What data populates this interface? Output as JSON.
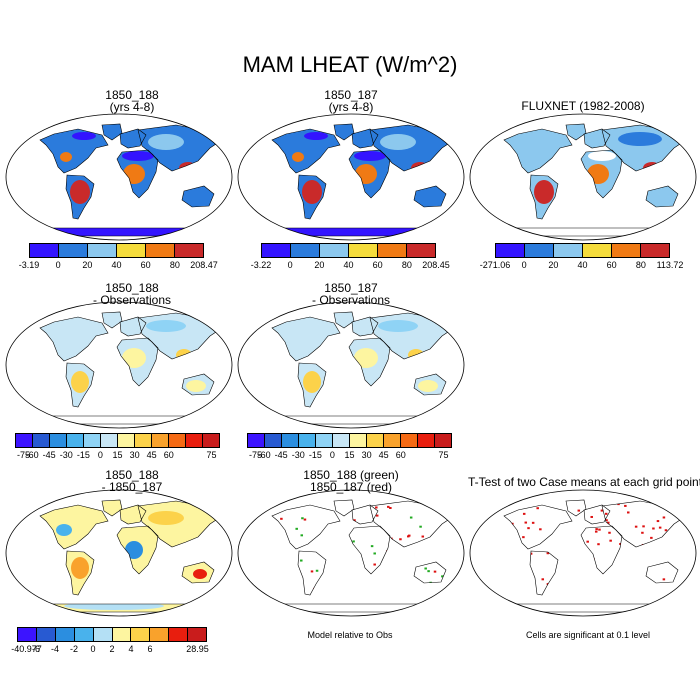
{
  "main_title": "MAM LHEAT (W/m^2)",
  "panels": {
    "p1": {
      "title_1": "1850_188",
      "title_2": "(yrs 4-8)"
    },
    "p2": {
      "title_1": "1850_187",
      "title_2": "(yrs 4-8)"
    },
    "p3": {
      "title_1": "FLUXNET (1982-2008)"
    },
    "p4": {
      "title_1": "1850_188",
      "title_2": "- Observations"
    },
    "p5": {
      "title_1": "1850_187",
      "title_2": "- Observations"
    },
    "p6": {
      "title_1": "1850_188",
      "title_2": "- 1850_187"
    },
    "p7": {
      "title_1": "1850_188 (green)",
      "title_2": "1850_187 (red)"
    },
    "p8": {
      "title_1": "T-Test of two Case means at each grid point"
    }
  },
  "colorbars": {
    "cb1": {
      "labels": [
        "-3.19",
        "0",
        "20",
        "40",
        "60",
        "80",
        "208.47"
      ]
    },
    "cb2": {
      "labels": [
        "-3.22",
        "0",
        "20",
        "40",
        "60",
        "80",
        "208.45"
      ]
    },
    "cb3": {
      "labels": [
        "-271.06",
        "0",
        "20",
        "40",
        "60",
        "80",
        "113.72"
      ]
    },
    "cb4": {
      "labels": [
        "-75",
        "-60",
        "-45",
        "-30",
        "-15",
        "0",
        "15",
        "30",
        "45",
        "60",
        "75"
      ]
    },
    "cb5": {
      "labels": [
        "-75",
        "-60",
        "-45",
        "-30",
        "-15",
        "0",
        "15",
        "30",
        "45",
        "60",
        "75"
      ]
    },
    "cb6": {
      "labels": [
        "-40.977",
        "-6",
        "-4",
        "-2",
        "0",
        "2",
        "4",
        "6",
        "28.95"
      ]
    }
  },
  "palettes": {
    "abs": [
      "#3314ff",
      "#2b7bdc",
      "#8cc8ee",
      "#f5dc3c",
      "#f07a14",
      "#c92a2a"
    ],
    "diff": [
      "#3c14ff",
      "#285ad2",
      "#2b8ee0",
      "#49b2ec",
      "#8fd3f5",
      "#c8e6f5",
      "#fdf5a0",
      "#fcd24a",
      "#f9a22c",
      "#f56a14",
      "#e81e0e",
      "#c91c1c"
    ],
    "case": [
      "#3c14ff",
      "#285ad2",
      "#2b8ee0",
      "#49b2ec",
      "#b4e0f5",
      "#fdf5a0",
      "#fcd24a",
      "#f9a22c",
      "#e81e0e",
      "#c91c1c"
    ]
  },
  "notes": {
    "model_relative": "Model relative to Obs",
    "cells_significant": "Cells are significant at 0.1 level"
  }
}
